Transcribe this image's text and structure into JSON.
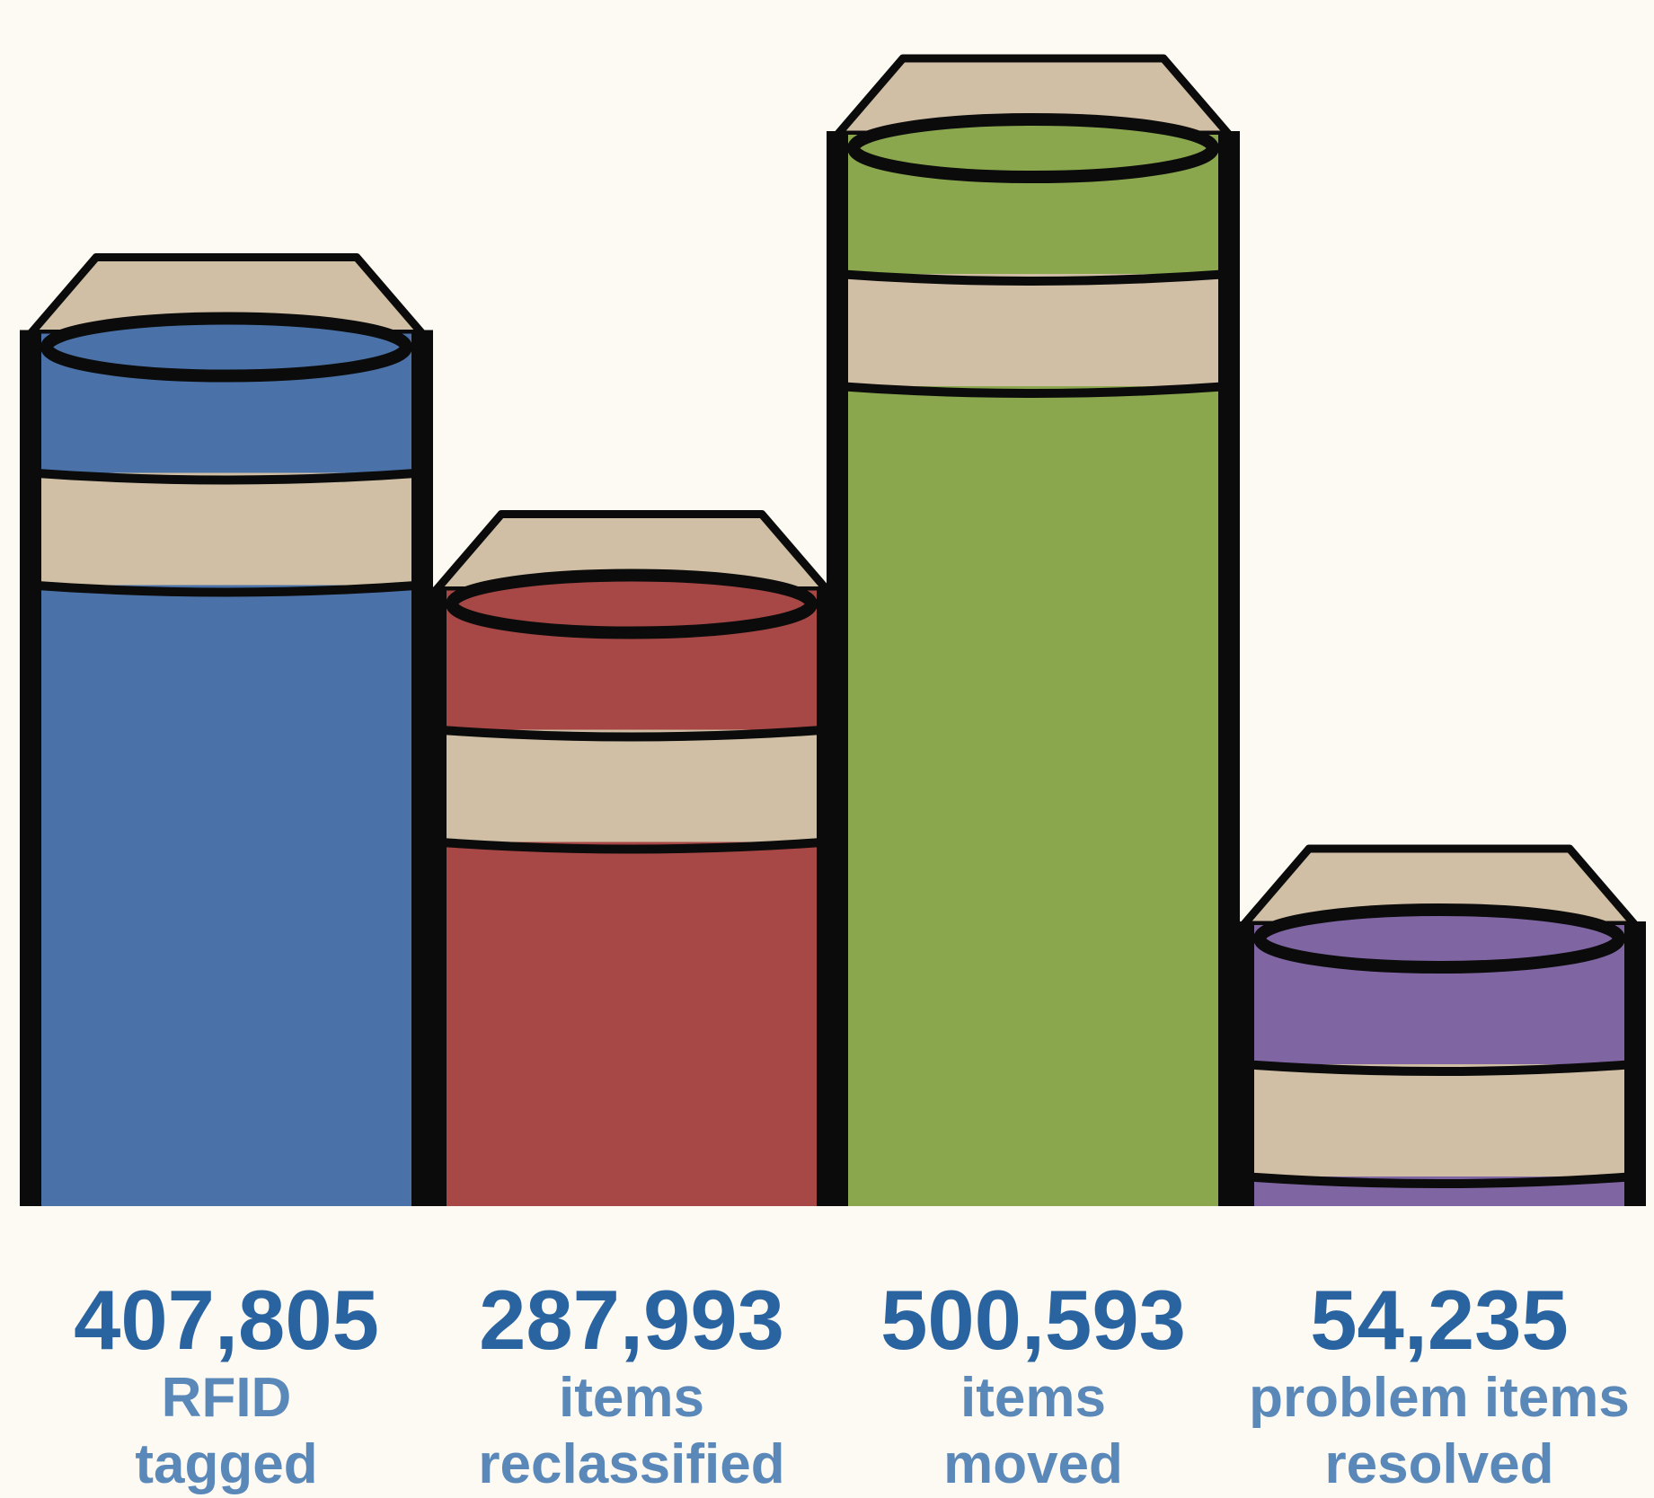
{
  "chart_data": {
    "type": "bar",
    "categories": [
      "RFID tagged",
      "items reclassified",
      "items moved",
      "problem items resolved"
    ],
    "values": [
      407805,
      287993,
      500593,
      54235
    ],
    "value_labels": [
      "407,805",
      "287,993",
      "500,593",
      "54,235"
    ],
    "label_lines": [
      [
        "RFID",
        "tagged"
      ],
      [
        "items",
        "reclassified"
      ],
      [
        "items",
        "moved"
      ],
      [
        "problem items",
        "resolved"
      ]
    ],
    "colors": [
      "#4a72a8",
      "#a84846",
      "#8ba74e",
      "#7f66a3"
    ],
    "band_color": "#d0bfa5",
    "title": "",
    "xlabel": "",
    "ylabel": "",
    "grid": false
  }
}
